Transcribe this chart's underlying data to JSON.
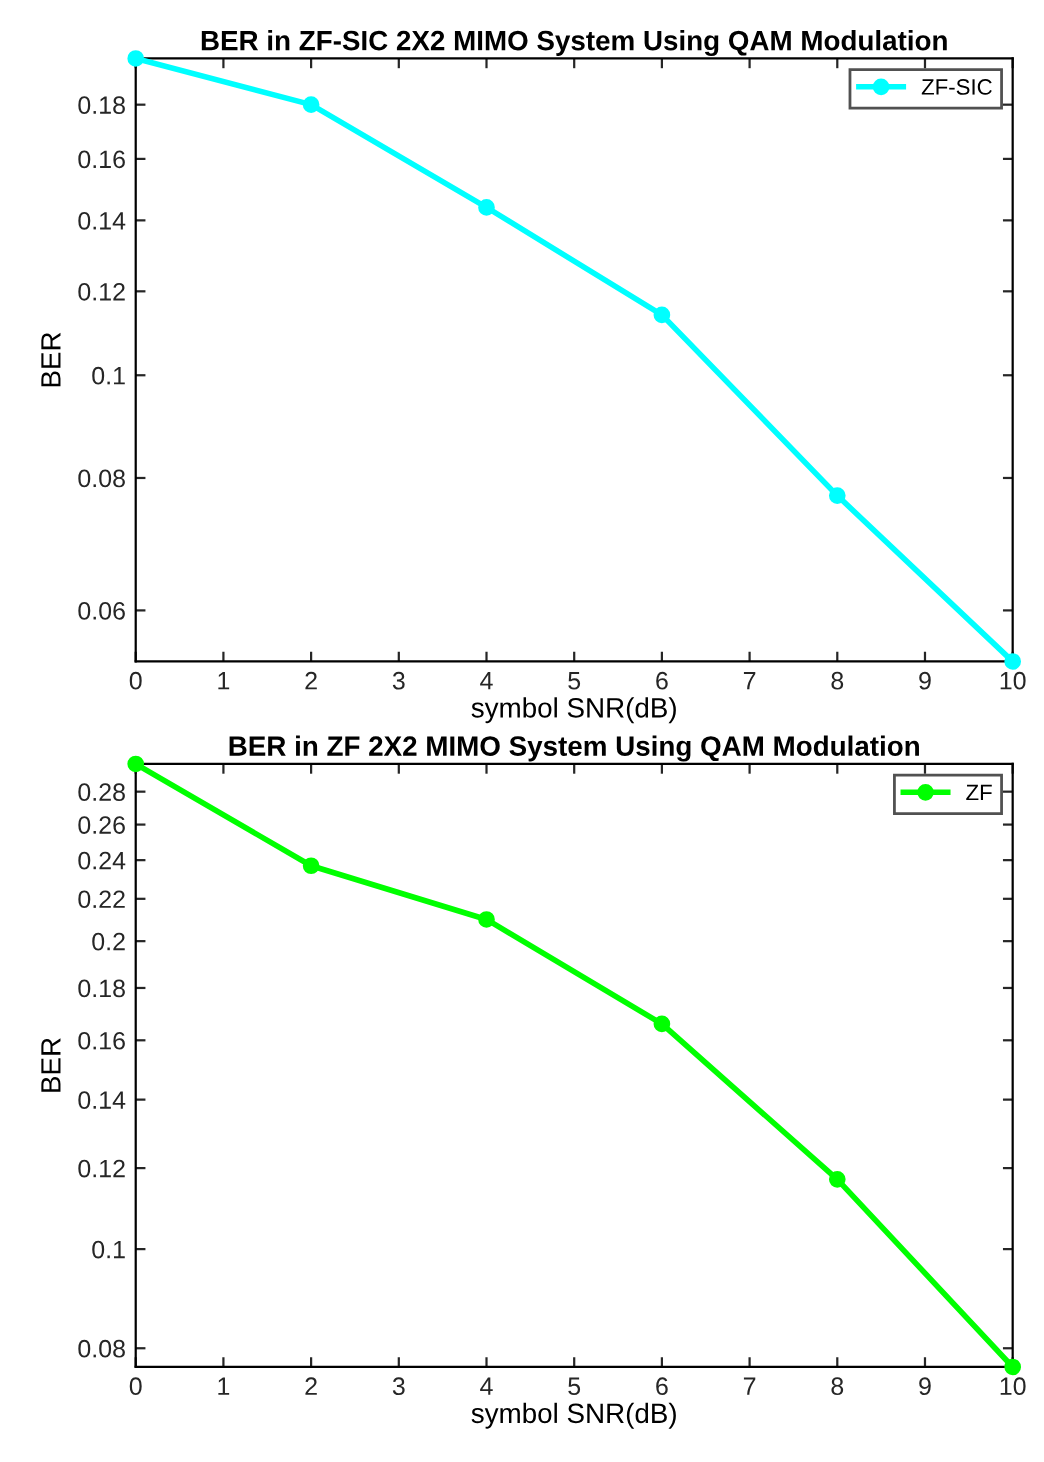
{
  "chart_data": [
    {
      "type": "line",
      "title": "BER in ZF-SIC 2X2 MIMO System Using QAM Modulation",
      "xlabel": "symbol SNR(dB)",
      "ylabel": "BER",
      "log": "y",
      "x": [
        0,
        2,
        4,
        6,
        8,
        10
      ],
      "series": [
        {
          "name": "ZF-SIC",
          "color": "#00ffff",
          "values": [
            0.199,
            0.18,
            0.144,
            0.114,
            0.077,
            0.0537
          ]
        }
      ],
      "xlim": [
        0,
        10
      ],
      "xticks": [
        0,
        1,
        2,
        3,
        4,
        5,
        6,
        7,
        8,
        9,
        10
      ],
      "ylim": [
        0.0537,
        0.199
      ],
      "yticks": [
        {
          "value": 0.06,
          "label": "0.06"
        },
        {
          "value": 0.08,
          "label": "0.08"
        },
        {
          "value": 0.1,
          "label": "0.1"
        },
        {
          "value": 0.12,
          "label": "0.12"
        },
        {
          "value": 0.14,
          "label": "0.14"
        },
        {
          "value": 0.16,
          "label": "0.16"
        },
        {
          "value": 0.18,
          "label": "0.18"
        }
      ],
      "legend": "top right",
      "marker": "circle",
      "line_style": "solid",
      "grid": false
    },
    {
      "type": "line",
      "title": "BER in ZF 2X2 MIMO System Using QAM Modulation",
      "xlabel": "symbol SNR(dB)",
      "ylabel": "BER",
      "log": "y",
      "x": [
        0,
        2,
        4,
        6,
        8,
        10
      ],
      "series": [
        {
          "name": "ZF",
          "color": "#00ff00",
          "values": [
            0.298,
            0.237,
            0.21,
            0.166,
            0.117,
            0.0767
          ]
        }
      ],
      "xlim": [
        0,
        10
      ],
      "xticks": [
        0,
        1,
        2,
        3,
        4,
        5,
        6,
        7,
        8,
        9,
        10
      ],
      "ylim": [
        0.0767,
        0.298
      ],
      "yticks": [
        {
          "value": 0.08,
          "label": "0.08"
        },
        {
          "value": 0.1,
          "label": "0.1"
        },
        {
          "value": 0.12,
          "label": "0.12"
        },
        {
          "value": 0.14,
          "label": "0.14"
        },
        {
          "value": 0.16,
          "label": "0.16"
        },
        {
          "value": 0.18,
          "label": "0.18"
        },
        {
          "value": 0.2,
          "label": "0.2"
        },
        {
          "value": 0.22,
          "label": "0.22"
        },
        {
          "value": 0.24,
          "label": "0.24"
        },
        {
          "value": 0.26,
          "label": "0.26"
        },
        {
          "value": 0.28,
          "label": "0.28"
        }
      ],
      "legend": "top right",
      "marker": "circle",
      "line_style": "solid",
      "grid": false
    }
  ]
}
